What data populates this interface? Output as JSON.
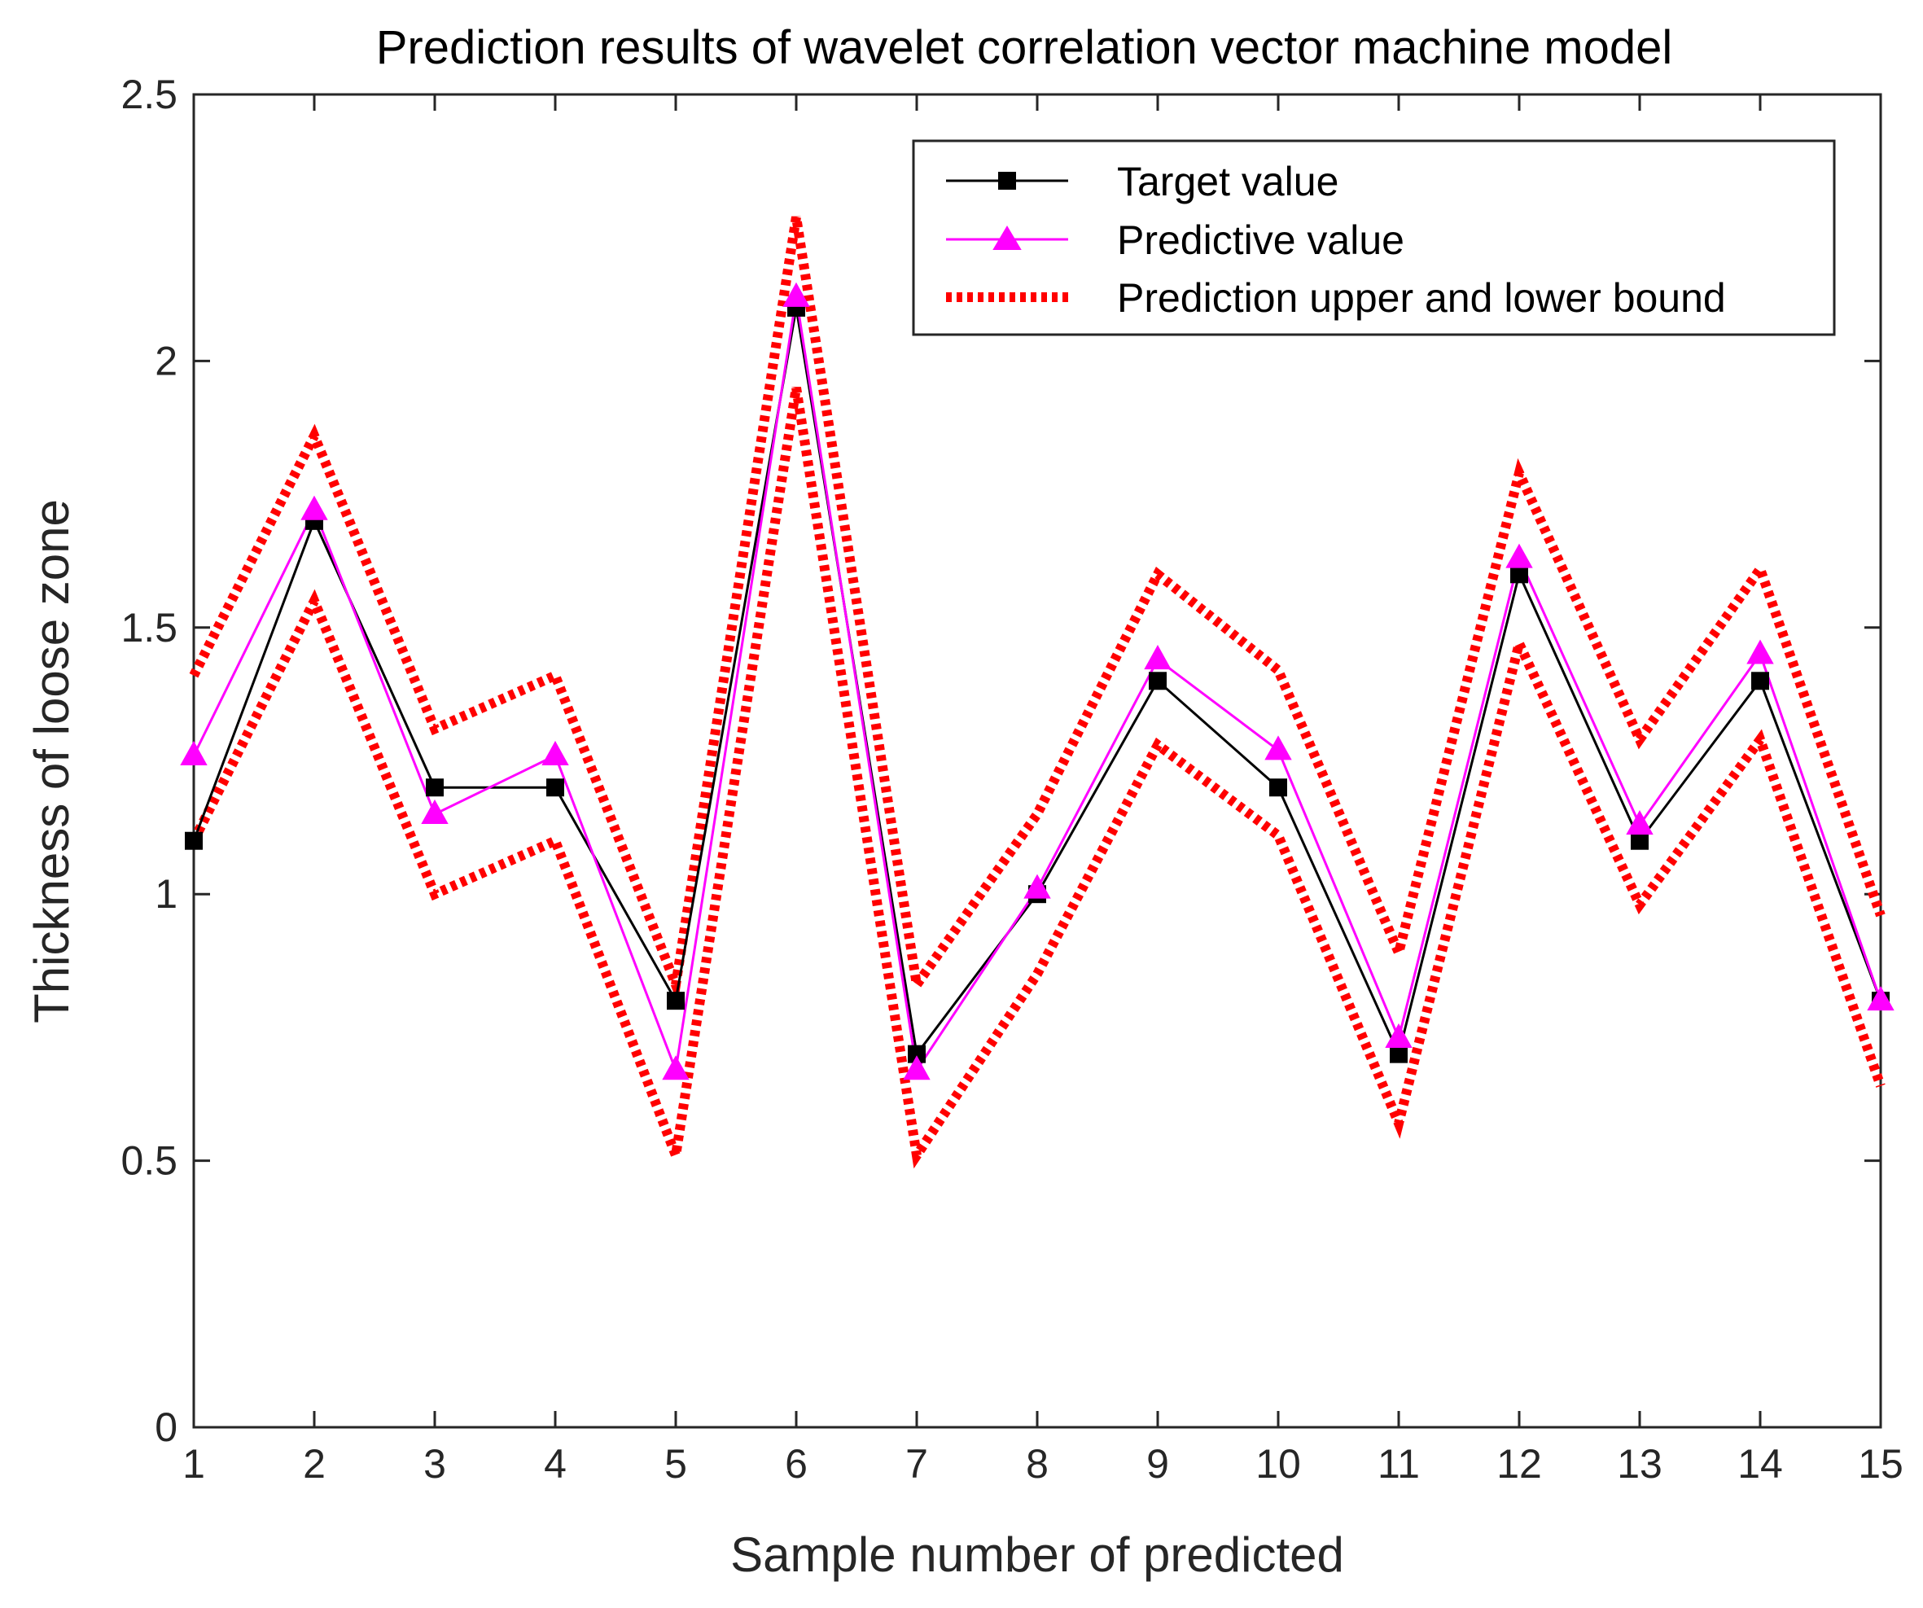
{
  "chart_data": {
    "type": "line",
    "title": "Prediction results of wavelet correlation vector machine model",
    "xlabel": "Sample number of predicted",
    "ylabel": "Thickness of loose zone",
    "xlim": [
      1,
      15
    ],
    "ylim": [
      0,
      2.5
    ],
    "xticks": [
      1,
      2,
      3,
      4,
      5,
      6,
      7,
      8,
      9,
      10,
      11,
      12,
      13,
      14,
      15
    ],
    "yticks": [
      0,
      0.5,
      1,
      1.5,
      2,
      2.5
    ],
    "ytick_labels": [
      "0",
      "0.5",
      "1",
      "1.5",
      "2",
      "2.5"
    ],
    "grid": false,
    "legend_position": "top-right",
    "x": [
      1,
      2,
      3,
      4,
      5,
      6,
      7,
      8,
      9,
      10,
      11,
      12,
      13,
      14,
      15
    ],
    "series": [
      {
        "name": "Target value",
        "color": "#000000",
        "marker": "square",
        "style": "solid",
        "values": [
          1.1,
          1.7,
          1.2,
          1.2,
          0.8,
          2.1,
          0.7,
          1.0,
          1.4,
          1.2,
          0.7,
          1.6,
          1.1,
          1.4,
          0.8
        ]
      },
      {
        "name": "Predictive value",
        "color": "#ff00ff",
        "marker": "triangle",
        "style": "solid",
        "values": [
          1.26,
          1.72,
          1.15,
          1.26,
          0.67,
          2.12,
          0.67,
          1.01,
          1.44,
          1.27,
          0.73,
          1.63,
          1.13,
          1.45,
          0.8
        ]
      },
      {
        "name": "Prediction upper and lower bound",
        "color": "#ff0000",
        "marker": "none",
        "style": "dotted",
        "upper": [
          1.41,
          1.86,
          1.31,
          1.41,
          0.83,
          2.27,
          0.83,
          1.15,
          1.6,
          1.42,
          0.89,
          1.79,
          1.29,
          1.61,
          0.96
        ],
        "lower": [
          1.1,
          1.55,
          1.0,
          1.1,
          0.51,
          1.95,
          0.51,
          0.85,
          1.28,
          1.11,
          0.57,
          1.47,
          0.98,
          1.29,
          0.64
        ]
      }
    ]
  }
}
